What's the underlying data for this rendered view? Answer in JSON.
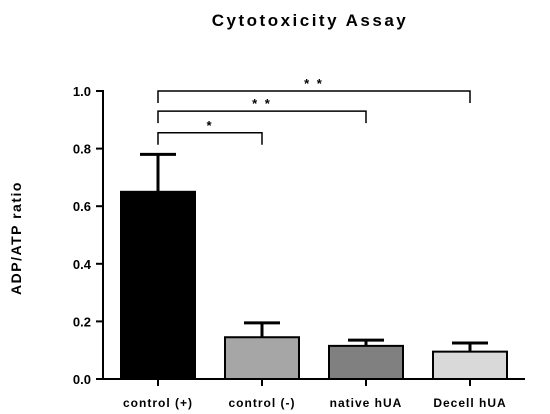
{
  "chart_data": {
    "type": "bar",
    "title": "Cytotoxicity Assay",
    "ylabel": "ADP/ATP ratio",
    "xlabel": "",
    "ylim": [
      0,
      1.0
    ],
    "yticks": [
      "0.0",
      "0.2",
      "0.4",
      "0.6",
      "0.8",
      "1.0"
    ],
    "categories": [
      "control (+)",
      "control (-)",
      "native hUA",
      "Decell hUA"
    ],
    "values": [
      0.65,
      0.145,
      0.115,
      0.095
    ],
    "error_upper": [
      0.13,
      0.05,
      0.02,
      0.03
    ],
    "bar_colors": [
      "#000000",
      "#a6a6a6",
      "#808080",
      "#d9d9d9"
    ],
    "significance": [
      {
        "from": "control (+)",
        "to": "control (-)",
        "label": "*",
        "y": 0.855
      },
      {
        "from": "control (+)",
        "to": "native hUA",
        "label": "* *",
        "y": 0.93
      },
      {
        "from": "control (+)",
        "to": "Decell hUA",
        "label": "* *",
        "y": 1.0
      }
    ],
    "grid": false,
    "legend": "none"
  }
}
